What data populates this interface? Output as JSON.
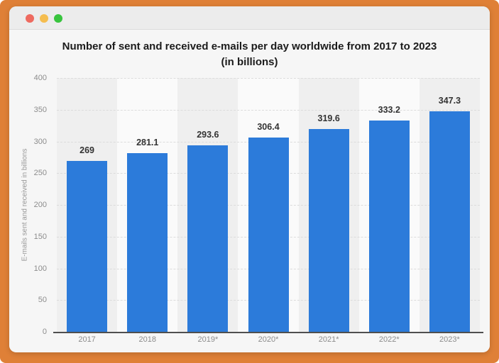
{
  "window": {
    "traffic_lights": [
      {
        "name": "close",
        "color": "#ee6a5f"
      },
      {
        "name": "minimize",
        "color": "#f5bd4f"
      },
      {
        "name": "zoom",
        "color": "#38c43e"
      }
    ],
    "frame_color": "#df8037",
    "titlebar_color": "#ececec"
  },
  "chart_data": {
    "type": "bar",
    "title": "Number of sent and received e-mails per day worldwide from 2017 to 2023",
    "subtitle": "(in billions)",
    "categories": [
      "2017",
      "2018",
      "2019*",
      "2020*",
      "2021*",
      "2022*",
      "2023*"
    ],
    "values": [
      269,
      281.1,
      293.6,
      306.4,
      319.6,
      333.2,
      347.3
    ],
    "value_labels": [
      "269",
      "281.1",
      "293.6",
      "306.4",
      "319.6",
      "333.2",
      "347.3"
    ],
    "xlabel": "",
    "ylabel": "E-mails sent and received in billions",
    "ylim": [
      0,
      400
    ],
    "yticks": [
      0,
      50,
      100,
      150,
      200,
      250,
      300,
      350,
      400
    ],
    "grid": true,
    "legend": false,
    "bar_color": "#2c7bda",
    "stripe_colors": [
      "#efefef",
      "#fafafa"
    ],
    "gridline_color": "#dcdcdc",
    "axis_color": "#4f4f4f"
  }
}
